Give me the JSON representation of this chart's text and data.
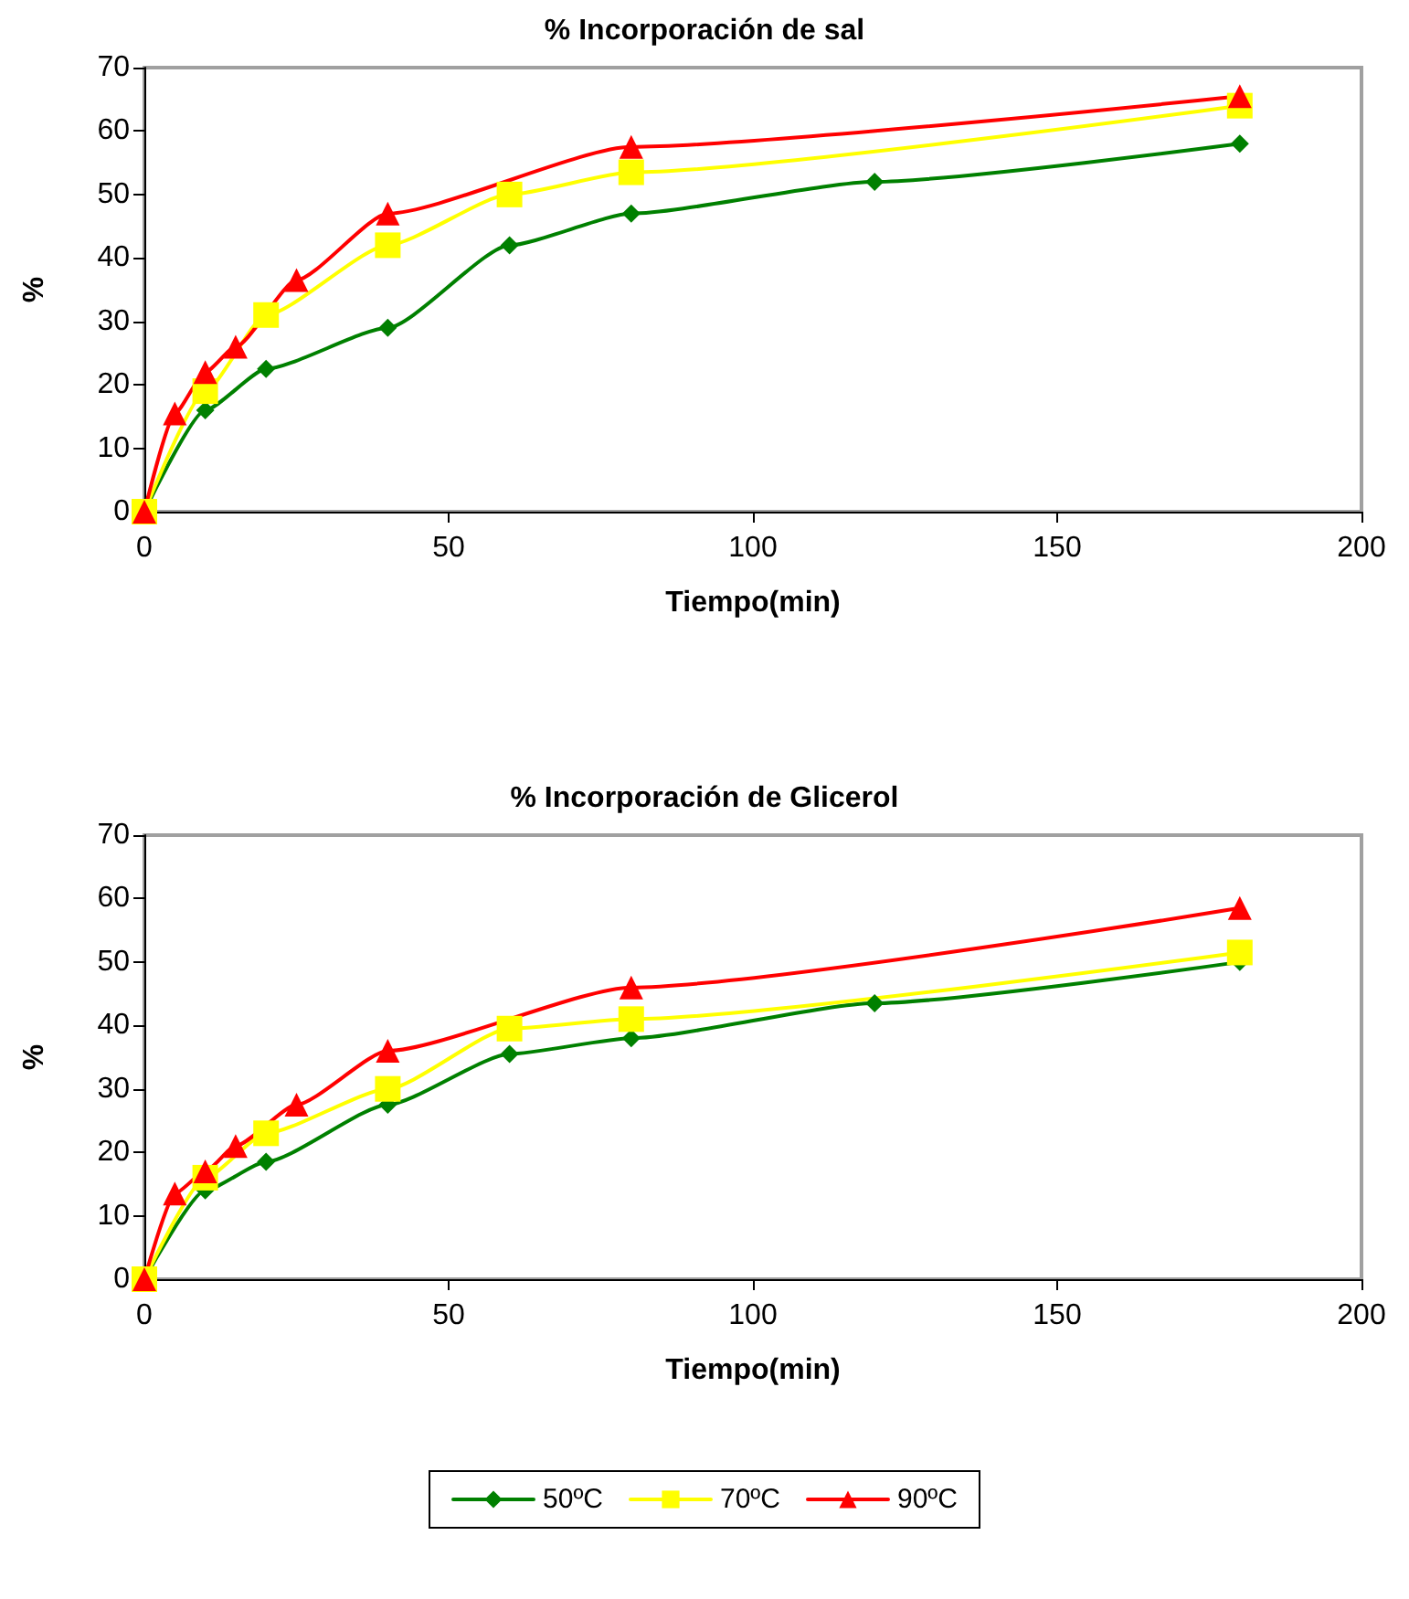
{
  "chart_data": [
    {
      "type": "line",
      "title": "% Incorporación de sal",
      "xlabel": "Tiempo(min)",
      "ylabel": "%",
      "xlim": [
        0,
        200
      ],
      "xticks": [
        0,
        50,
        100,
        150,
        200
      ],
      "ylim": [
        0,
        70
      ],
      "yticks": [
        0,
        10,
        20,
        30,
        40,
        50,
        60,
        70
      ],
      "grid": false,
      "legend": false,
      "line_style": "solid",
      "series": [
        {
          "color": "#008000",
          "marker": "diamond",
          "x": [
            0,
            10,
            20,
            40,
            60,
            80,
            120,
            180
          ],
          "values": [
            0,
            16,
            22.5,
            29,
            42,
            47,
            52,
            58
          ]
        },
        {
          "color": "#ffff00",
          "marker": "square",
          "x": [
            0,
            10,
            20,
            40,
            60,
            80,
            180
          ],
          "values": [
            0,
            19,
            31,
            42,
            50,
            53.5,
            64
          ]
        },
        {
          "color": "#ff0000",
          "marker": "triangle",
          "x": [
            0,
            5,
            10,
            15,
            25,
            40,
            80,
            180
          ],
          "values": [
            0,
            15.5,
            22,
            26,
            36.5,
            47,
            57.5,
            65.5
          ]
        }
      ]
    },
    {
      "type": "line",
      "title": "% Incorporación de Glicerol",
      "xlabel": "Tiempo(min)",
      "ylabel": "%",
      "xlim": [
        0,
        200
      ],
      "xticks": [
        0,
        50,
        100,
        150,
        200
      ],
      "ylim": [
        0,
        70
      ],
      "yticks": [
        0,
        10,
        20,
        30,
        40,
        50,
        60,
        70
      ],
      "grid": false,
      "legend": "bottom",
      "line_style": "solid",
      "series": [
        {
          "name": "50ºC",
          "color": "#008000",
          "marker": "diamond",
          "x": [
            0,
            10,
            20,
            40,
            60,
            80,
            120,
            180
          ],
          "values": [
            0,
            14,
            18.5,
            27.5,
            35.5,
            38,
            43.5,
            50
          ]
        },
        {
          "name": "70ºC",
          "color": "#ffff00",
          "marker": "square",
          "x": [
            0,
            10,
            20,
            40,
            60,
            80,
            180
          ],
          "values": [
            0,
            16,
            23,
            30,
            39.5,
            41,
            51.5
          ]
        },
        {
          "name": "90ºC",
          "color": "#ff0000",
          "marker": "triangle",
          "x": [
            0,
            5,
            10,
            15,
            25,
            40,
            80,
            180
          ],
          "values": [
            0,
            13.5,
            17,
            21,
            27.5,
            36,
            46,
            58.5
          ]
        }
      ]
    }
  ]
}
